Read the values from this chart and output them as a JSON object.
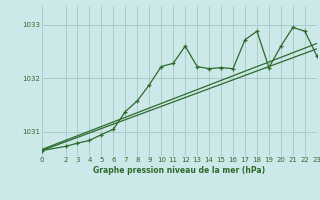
{
  "title": "Graphe pression niveau de la mer (hPa)",
  "bg_color": "#cce8e8",
  "grid_color": "#aacccc",
  "line_color": "#2d6b2d",
  "xlim": [
    0,
    23
  ],
  "ylim": [
    1030.55,
    1033.35
  ],
  "yticks": [
    1031,
    1032,
    1033
  ],
  "xticks": [
    0,
    2,
    3,
    4,
    5,
    6,
    7,
    8,
    9,
    10,
    11,
    12,
    13,
    14,
    15,
    16,
    17,
    18,
    19,
    20,
    21,
    22,
    23
  ],
  "line1_x": [
    0,
    23
  ],
  "line1_y": [
    1030.65,
    1032.55
  ],
  "line2_x": [
    0,
    23
  ],
  "line2_y": [
    1030.67,
    1032.65
  ],
  "line3_x": [
    0,
    2,
    3,
    4,
    5,
    6,
    7,
    8,
    9,
    10,
    11,
    12,
    13,
    14,
    15,
    16,
    17,
    18,
    19,
    20,
    21,
    22,
    23
  ],
  "line3_y": [
    1030.65,
    1030.73,
    1030.79,
    1030.84,
    1030.95,
    1031.05,
    1031.38,
    1031.58,
    1031.88,
    1032.22,
    1032.28,
    1032.6,
    1032.22,
    1032.18,
    1032.2,
    1032.18,
    1032.72,
    1032.88,
    1032.2,
    1032.6,
    1032.95,
    1032.88,
    1032.42
  ]
}
